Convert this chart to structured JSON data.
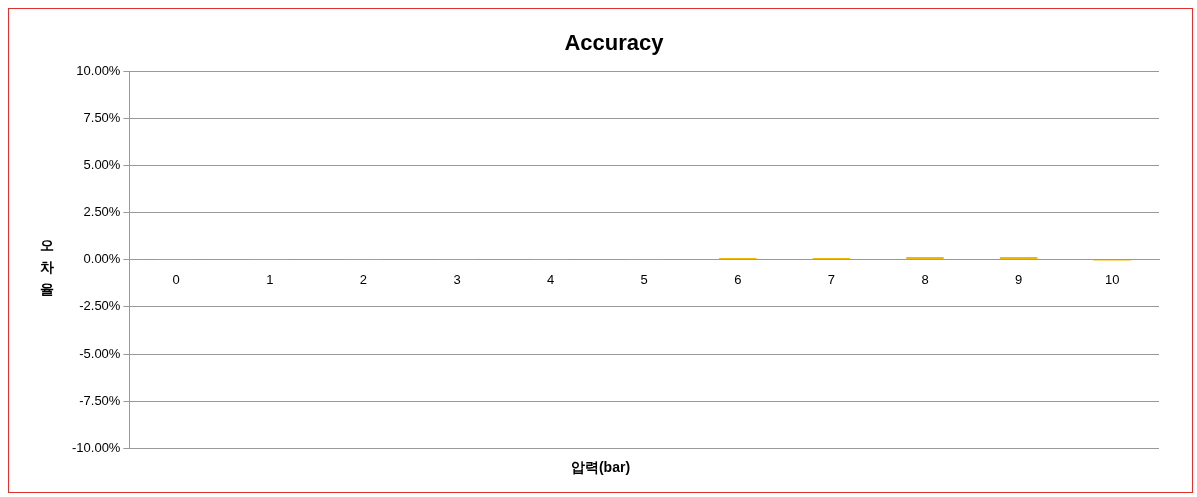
{
  "chart_data": {
    "type": "bar",
    "title": "Accuracy",
    "xlabel": "압력(bar)",
    "ylabel": "오차율",
    "categories": [
      "0",
      "1",
      "2",
      "3",
      "4",
      "5",
      "6",
      "7",
      "8",
      "9",
      "10"
    ],
    "values": [
      0.01,
      0.01,
      0.01,
      0.01,
      0.01,
      0.01,
      0.1,
      0.1,
      0.15,
      0.15,
      -0.05
    ],
    "color": "#f0b800",
    "ylim": [
      -10,
      10
    ],
    "yticks": [
      {
        "value": -10,
        "label": "-10.00%"
      },
      {
        "value": -7.5,
        "label": "-7.50%"
      },
      {
        "value": -5,
        "label": "-5.00%"
      },
      {
        "value": -2.5,
        "label": "-2.50%"
      },
      {
        "value": 0,
        "label": "0.00%"
      },
      {
        "value": 2.5,
        "label": "2.50%"
      },
      {
        "value": 5,
        "label": "5.00%"
      },
      {
        "value": 7.5,
        "label": "7.50%"
      },
      {
        "value": 10,
        "label": "10.00%"
      }
    ],
    "grid": "y",
    "legend": false
  }
}
